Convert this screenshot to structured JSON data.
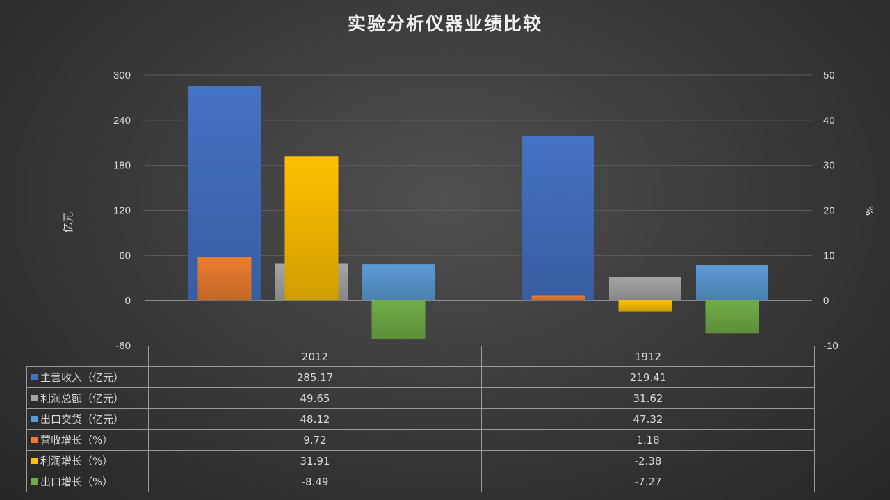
{
  "chart_data": {
    "type": "bar",
    "title": "实验分析仪器业绩比较",
    "ylabel_left": "亿元",
    "ylabel_right": "%",
    "categories": [
      "2012",
      "1912"
    ],
    "ylim_left": [
      -60,
      300
    ],
    "yticks_left": [
      "300",
      "240",
      "180",
      "120",
      "60",
      "0",
      "-60"
    ],
    "ylim_right": [
      -10,
      50
    ],
    "yticks_right": [
      "50",
      "40",
      "30",
      "20",
      "10",
      "0",
      "-10"
    ],
    "grid": true,
    "legend_placement": "data-table-bottom",
    "series": [
      {
        "name": "主营收入（亿元）",
        "axis": "left",
        "color": "#4472c4",
        "values": [
          285.17,
          219.41
        ],
        "labels": [
          "285.17",
          "219.41"
        ]
      },
      {
        "name": "利润总额（亿元）",
        "axis": "left",
        "color": "#a5a5a5",
        "values": [
          49.65,
          31.62
        ],
        "labels": [
          "49.65",
          "31.62"
        ]
      },
      {
        "name": "出口交货（亿元）",
        "axis": "left",
        "color": "#5b9bd5",
        "values": [
          48.12,
          47.32
        ],
        "labels": [
          "48.12",
          "47.32"
        ]
      },
      {
        "name": "营收增长（%）",
        "axis": "right",
        "color": "#ed7d31",
        "values": [
          9.72,
          1.18
        ],
        "labels": [
          "9.72",
          "1.18"
        ]
      },
      {
        "name": "利润增长（%）",
        "axis": "right",
        "color": "#ffc000",
        "values": [
          31.91,
          -2.38
        ],
        "labels": [
          "31.91",
          "-2.38"
        ]
      },
      {
        "name": "出口增长（%）",
        "axis": "right",
        "color": "#70ad47",
        "values": [
          -8.49,
          -7.27
        ],
        "labels": [
          "-8.49",
          "-7.27"
        ]
      }
    ]
  }
}
